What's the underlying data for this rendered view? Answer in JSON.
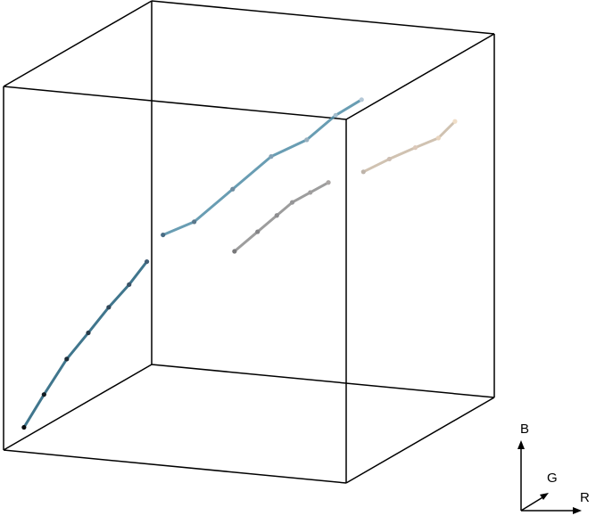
{
  "chart_data": {
    "type": "scatter",
    "title": "",
    "axes": {
      "x": "R",
      "y": "G",
      "z": "B"
    },
    "range": {
      "R": [
        0,
        255
      ],
      "G": [
        0,
        255
      ],
      "B": [
        0,
        255
      ]
    },
    "grid": false,
    "legend": "none",
    "point_color": "rgb(R,G,B) of each point",
    "point_clusters": [
      {
        "name": "",
        "color": "#1f5f7a",
        "points": [
          [
            10,
            12,
            14
          ],
          [
            18,
            28,
            34
          ],
          [
            28,
            44,
            56
          ],
          [
            38,
            58,
            72
          ],
          [
            48,
            70,
            88
          ],
          [
            58,
            82,
            102
          ],
          [
            66,
            94,
            116
          ]
        ]
      },
      {
        "name": "",
        "color": "#4f8da6",
        "points": [
          [
            72,
            108,
            132
          ],
          [
            90,
            120,
            140
          ],
          [
            110,
            140,
            160
          ],
          [
            130,
            160,
            180
          ],
          [
            150,
            175,
            190
          ],
          [
            165,
            190,
            205
          ],
          [
            180,
            200,
            215
          ]
        ]
      },
      {
        "name": "",
        "color": "#8c8c8c",
        "points": [
          [
            120,
            120,
            122
          ],
          [
            132,
            132,
            134
          ],
          [
            142,
            142,
            144
          ],
          [
            150,
            150,
            152
          ],
          [
            160,
            158,
            158
          ],
          [
            170,
            166,
            164
          ]
        ]
      },
      {
        "name": "",
        "color": "#c8b8a4",
        "points": [
          [
            190,
            180,
            170
          ],
          [
            205,
            190,
            178
          ],
          [
            220,
            200,
            185
          ],
          [
            232,
            212,
            190
          ],
          [
            240,
            222,
            200
          ]
        ]
      }
    ]
  }
}
